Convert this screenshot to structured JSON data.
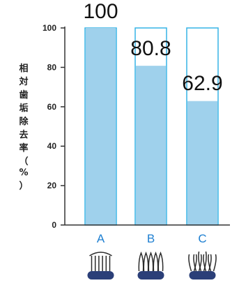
{
  "chart_data": {
    "type": "bar",
    "categories": [
      "A",
      "B",
      "C"
    ],
    "values": [
      100,
      80.8,
      62.9
    ],
    "data_labels": [
      "100",
      "80.8",
      "62.9"
    ],
    "title": "",
    "xlabel": "",
    "ylabel": "相対歯垢除去率（%）",
    "ylim": [
      0,
      100
    ],
    "yticks": [
      0,
      20,
      40,
      60,
      80,
      100
    ],
    "grid": false,
    "legend": "none",
    "colors": {
      "fill": "#9fd1ec",
      "outline": "#35b3e6",
      "axis": "#333333",
      "category_text": "#1e7fd1",
      "brush_handle": "#2b3f78"
    },
    "icons": [
      "toothbrush-head-icon-a",
      "toothbrush-head-icon-b",
      "toothbrush-head-icon-c"
    ]
  }
}
